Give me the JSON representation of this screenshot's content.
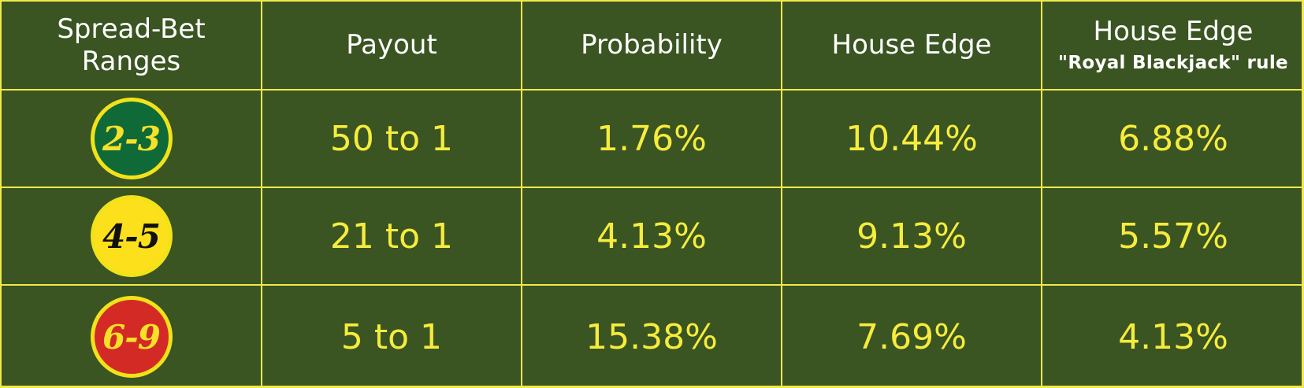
{
  "header": {
    "col1": "Spread-Bet Ranges",
    "col2": "Payout",
    "col3": "Probability",
    "col4": "House Edge",
    "col5": "House Edge",
    "col5_sub": "\"Royal Blackjack\" rule"
  },
  "rows": [
    {
      "range": "2-3",
      "payout": "50 to 1",
      "probability": "1.76%",
      "house_edge": "10.44%",
      "house_edge_royal": "6.88%",
      "chip_color": "#106a38",
      "chip_text_color": "#f6e12a"
    },
    {
      "range": "4-5",
      "payout": "21 to 1",
      "probability": "4.13%",
      "house_edge": "9.13%",
      "house_edge_royal": "5.57%",
      "chip_color": "#fde01c",
      "chip_text_color": "#111111"
    },
    {
      "range": "6-9",
      "payout": "5 to 1",
      "probability": "15.38%",
      "house_edge": "7.69%",
      "house_edge_royal": "4.13%",
      "chip_color": "#d42a25",
      "chip_text_color": "#f6e12a"
    }
  ],
  "colors": {
    "table_bg": "#3a5422",
    "grid_lines": "#f3e84a",
    "header_text": "#ffffff",
    "value_text": "#f6ec3c"
  }
}
